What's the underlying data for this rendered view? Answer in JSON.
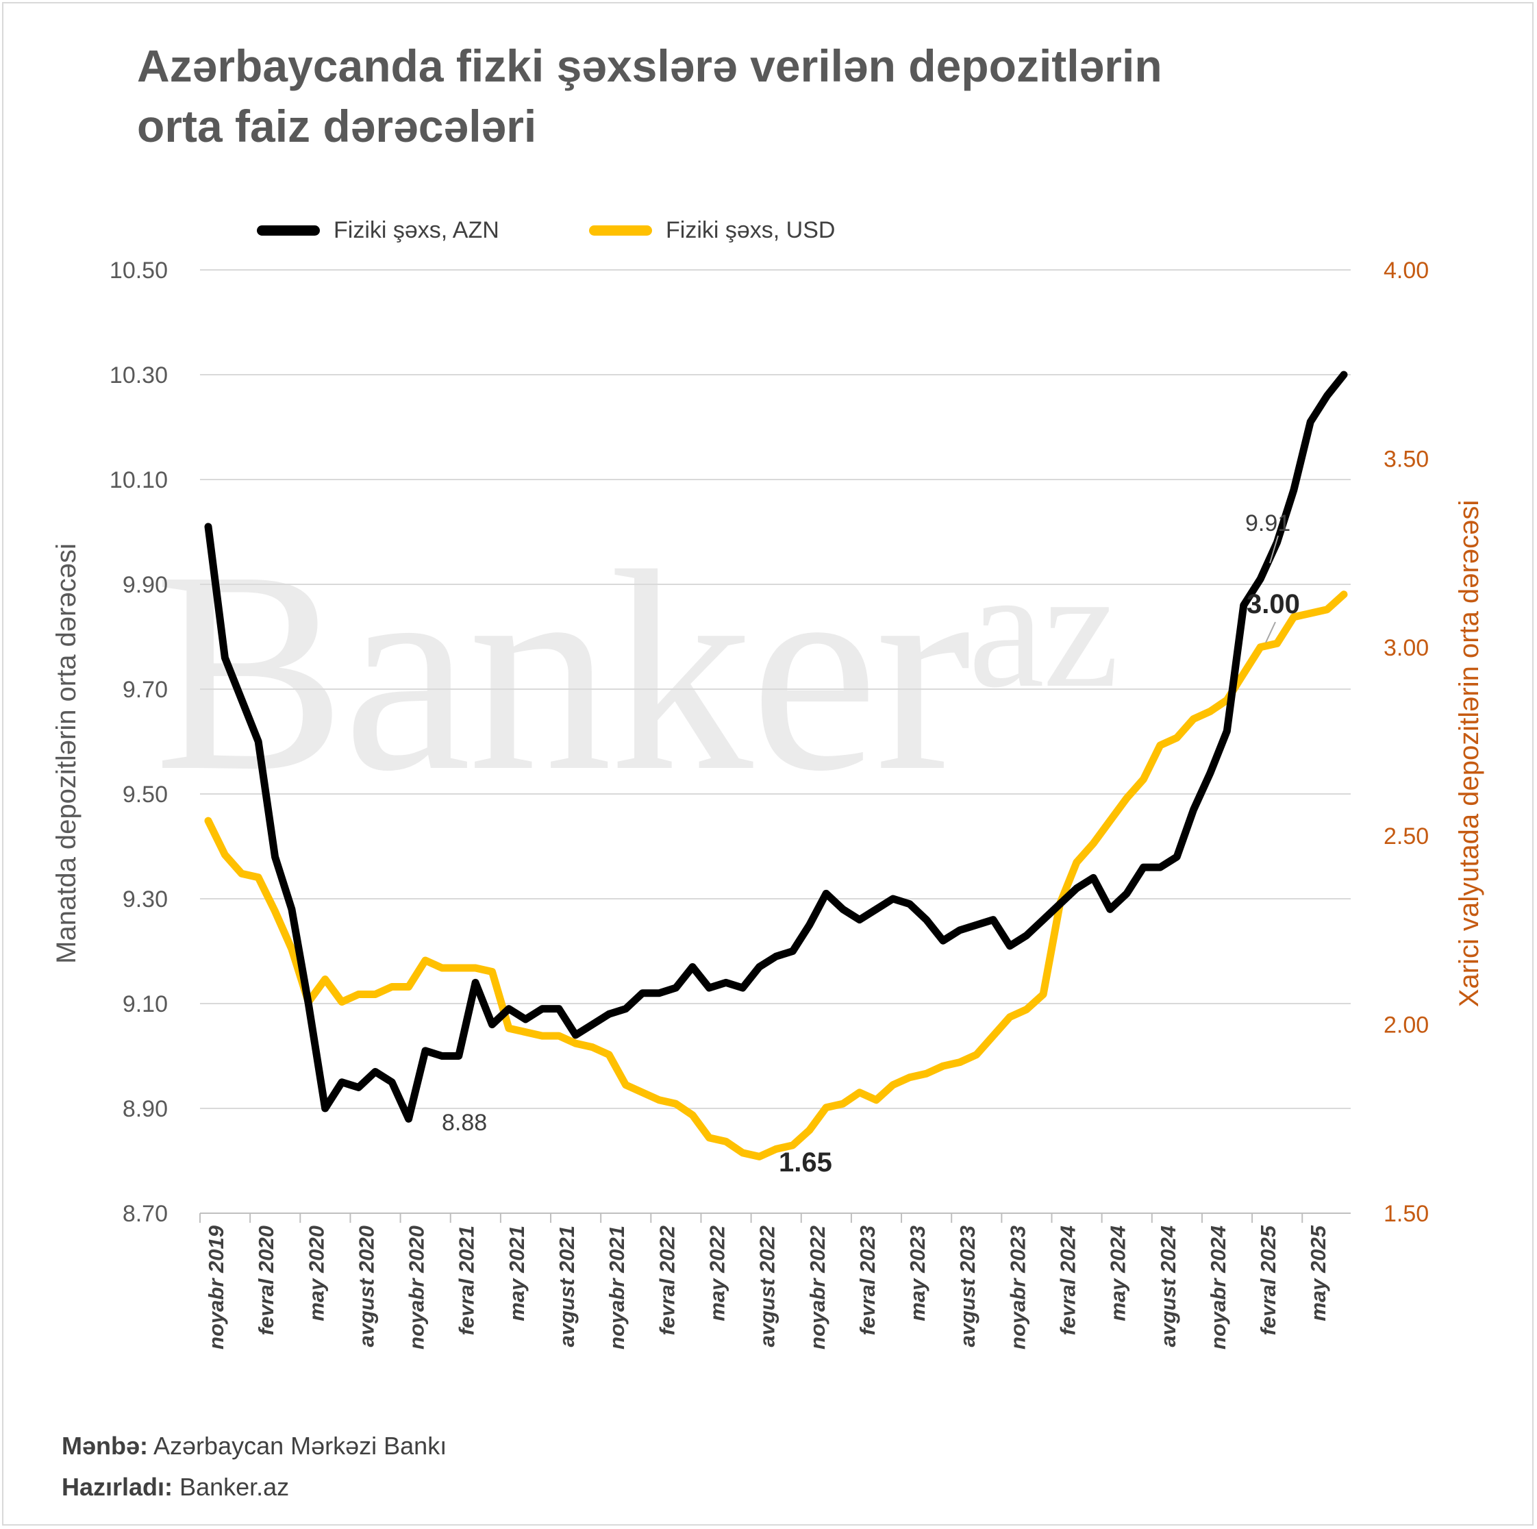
{
  "title": {
    "line1": "Azərbaycanda fizki şəxslərə verilən depozitlərin",
    "line2": "orta faiz dərəcələri"
  },
  "watermark": {
    "main": "Banker",
    "sup": "az"
  },
  "footer": {
    "source_label": "Mənbə:",
    "source_value": "Azərbaycan Mərkəzi Bankı",
    "prepared_label": "Hazırladı:",
    "prepared_value": "Banker.az"
  },
  "chart_data": {
    "type": "line",
    "legend_position": "top",
    "grid": true,
    "x_tick_labels": [
      "noyabr 2019",
      "fevral 2020",
      "may 2020",
      "avgust 2020",
      "noyabr 2020",
      "fevral 2021",
      "may 2021",
      "avgust 2021",
      "noyabr 2021",
      "fevral 2022",
      "may 2022",
      "avgust 2022",
      "noyabr 2022",
      "fevral 2023",
      "may 2023",
      "avgust 2023",
      "noyabr 2023",
      "fevral 2024",
      "may 2024",
      "avgust 2024",
      "noyabr 2024",
      "fevral 2025",
      "may 2025"
    ],
    "y_left": {
      "label": "Manatda depozitlərin orta dərəcəsi",
      "ylim": [
        8.7,
        10.5
      ],
      "ticks": [
        "10.50",
        "10.30",
        "10.10",
        "9.90",
        "9.70",
        "9.50",
        "9.30",
        "9.10",
        "8.90",
        "8.70"
      ],
      "color": "#595959"
    },
    "y_right": {
      "label": "Xarici valyutada depozitlərin orta dərəcəsi",
      "ylim": [
        1.5,
        4.0
      ],
      "ticks": [
        "4.00",
        "3.50",
        "3.00",
        "2.50",
        "2.00",
        "1.50"
      ],
      "color": "#c55a11"
    },
    "series": [
      {
        "name": "Fiziki şəxs, AZN",
        "axis": "left",
        "color": "#000000",
        "values": [
          10.01,
          9.76,
          9.68,
          9.6,
          9.38,
          9.28,
          9.1,
          8.9,
          8.95,
          8.94,
          8.97,
          8.95,
          8.88,
          9.01,
          9.0,
          9.0,
          9.14,
          9.06,
          9.09,
          9.07,
          9.09,
          9.09,
          9.04,
          9.06,
          9.08,
          9.09,
          9.12,
          9.12,
          9.13,
          9.17,
          9.13,
          9.14,
          9.13,
          9.17,
          9.19,
          9.2,
          9.25,
          9.31,
          9.28,
          9.26,
          9.28,
          9.3,
          9.29,
          9.26,
          9.22,
          9.24,
          9.25,
          9.26,
          9.21,
          9.23,
          9.26,
          9.29,
          9.32,
          9.34,
          9.28,
          9.31,
          9.36,
          9.36,
          9.38,
          9.47,
          9.54,
          9.62,
          9.86,
          9.91,
          9.98,
          10.08,
          10.21,
          10.26,
          10.3
        ]
      },
      {
        "name": "Fiziki şəxs, USD",
        "axis": "right",
        "color": "#ffc000",
        "values": [
          2.54,
          2.45,
          2.4,
          2.39,
          2.3,
          2.2,
          2.06,
          2.12,
          2.06,
          2.08,
          2.08,
          2.1,
          2.1,
          2.17,
          2.15,
          2.15,
          2.15,
          2.14,
          1.99,
          1.98,
          1.97,
          1.97,
          1.95,
          1.94,
          1.92,
          1.84,
          1.82,
          1.8,
          1.79,
          1.76,
          1.7,
          1.69,
          1.66,
          1.65,
          1.67,
          1.68,
          1.72,
          1.78,
          1.79,
          1.82,
          1.8,
          1.84,
          1.86,
          1.87,
          1.89,
          1.9,
          1.92,
          1.97,
          2.02,
          2.04,
          2.08,
          2.32,
          2.43,
          2.48,
          2.54,
          2.6,
          2.65,
          2.74,
          2.76,
          2.81,
          2.83,
          2.86,
          2.93,
          3.0,
          3.01,
          3.08,
          3.09,
          3.1,
          3.14
        ]
      }
    ],
    "annotations": [
      {
        "text": "8.88",
        "series": "Fiziki şəxs, AZN",
        "bold": false
      },
      {
        "text": "1.65",
        "series": "Fiziki şəxs, USD",
        "bold": true
      },
      {
        "text": "9.91",
        "series": "Fiziki şəxs, AZN",
        "bold": false
      },
      {
        "text": "3.00",
        "series": "Fiziki şəxs, USD",
        "bold": true
      }
    ]
  }
}
